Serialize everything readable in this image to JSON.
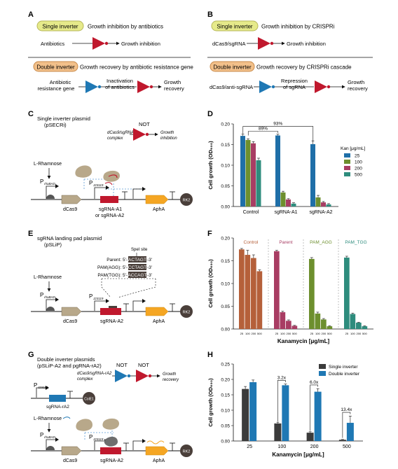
{
  "panels": {
    "A": {
      "label": "A",
      "single_tag": "Single inverter",
      "single_title": "Growth inhibition by antibiotics",
      "single_in": "Antibiotics",
      "single_out": "Growth inhibition",
      "double_tag": "Double inverter",
      "double_title": "Growth recovery by antibiotic resistance gene",
      "double_in_1": "Antibiotic",
      "double_in_2": "resistance gene",
      "double_mid_1": "Inactivation",
      "double_mid_2": "of antibiotics",
      "double_out_1": "Growth",
      "double_out_2": "recovery"
    },
    "B": {
      "label": "B",
      "single_tag": "Single inverter",
      "single_title": "Growth inhibition by CRISPRi",
      "single_in": "dCas9/sgRNA",
      "single_out": "Growth inhibition",
      "double_tag": "Double inverter",
      "double_title": "Growth recovery by CRISPRi cascade",
      "double_in": "dCas9/anti-sgRNA",
      "double_mid_1": "Repression",
      "double_mid_2": "of sgRNA",
      "double_out_1": "Growth",
      "double_out_2": "recovery"
    },
    "C": {
      "label": "C",
      "title_1": "Single inverter plasmid",
      "title_2": "(pSECRi)",
      "not_label": "NOT",
      "logic_in_1": "dCas9/sgRNA",
      "logic_in_2": "complex",
      "logic_out_1": "Growth",
      "logic_out_2": "inhibition",
      "inducer": "L-Rhamnose",
      "promoter_1": "P",
      "promoter_1_sub": "rhaBAD",
      "promoter_2": "P",
      "promoter_2_sub": "J23119",
      "gene_1": "dCas9",
      "gene_2_1": "sgRNA-A1",
      "gene_2_2": "or sgRNA-A2",
      "gene_3": "AphA",
      "origin": "RK2"
    },
    "E": {
      "label": "E",
      "title_1": "sgRNA landing pad plasmid",
      "title_2": "(pSLiP)",
      "site_label": "SpeI site",
      "seq_rows": [
        {
          "name": "Parent: 5'-",
          "seq": "ACTAGT",
          "end": "-3'"
        },
        {
          "name": "PAM(AGG): 5'-",
          "seq": "CCTAGT",
          "end": "-3'"
        },
        {
          "name": "PAM(TGG): 5'-",
          "seq": "ACCAGT",
          "end": "-3'"
        }
      ],
      "inducer": "L-Rhamnose",
      "promoter_1": "P",
      "promoter_1_sub": "rhaBAD",
      "promoter_2": "P",
      "promoter_2_sub": "J23119",
      "gene_1": "dCas9",
      "gene_2": "sgRNA-A2",
      "gene_3": "AphA",
      "origin": "RK2"
    },
    "G": {
      "label": "G",
      "title_1": "Double inverter plasmids",
      "title_2": "(pSLiP-A2 and pgRNA-rA2)",
      "not_1": "NOT",
      "not_2": "NOT",
      "logic_in_1": "dCas9/sgRNA-rA2",
      "logic_in_2": "complex",
      "logic_out_1": "Growth",
      "logic_out_2": "recovery",
      "promoter_a": "P",
      "promoter_a_sub": "J23119",
      "gene_ra2": "sgRNA-rA2",
      "origin_a": "ColE1",
      "inducer": "L-Rhamnose",
      "promoter_1": "P",
      "promoter_1_sub": "rhaBAD",
      "promoter_2": "P",
      "promoter_2_sub": "J23119",
      "gene_1": "dCas9",
      "gene_2": "sgRNA-A2",
      "gene_3": "AphA",
      "origin": "RK2"
    }
  },
  "chart_data": [
    {
      "panel": "D",
      "type": "bar",
      "ylabel": "Cell growth (OD₆₀₀)",
      "ylim": [
        0,
        0.2
      ],
      "yticks": [
        "0.00",
        "0.05",
        "0.10",
        "0.15",
        "0.20"
      ],
      "categories": [
        "Control",
        "sgRNA-A1",
        "sgRNA-A2"
      ],
      "legend_title": "Kan [μg/mL]",
      "legend_position": "right",
      "series": [
        {
          "name": "25",
          "color": "#1f6fa8",
          "values": [
            0.171,
            0.172,
            0.151
          ],
          "err": [
            0.004,
            0.003,
            0.008
          ]
        },
        {
          "name": "100",
          "color": "#6d8f2e",
          "values": [
            0.161,
            0.034,
            0.022
          ],
          "err": [
            0.003,
            0.003,
            0.005
          ]
        },
        {
          "name": "200",
          "color": "#a83d63",
          "values": [
            0.153,
            0.017,
            0.01
          ],
          "err": [
            0.004,
            0.002,
            0.002
          ]
        },
        {
          "name": "500",
          "color": "#2e8c7d",
          "values": [
            0.112,
            0.007,
            0.005
          ],
          "err": [
            0.005,
            0.002,
            0.002
          ]
        }
      ],
      "annotations": [
        "93%",
        "89%"
      ]
    },
    {
      "panel": "F",
      "type": "bar",
      "ylabel": "Cell growth (OD₆₀₀)",
      "xlabel": "Kanamycin [μg/mL]",
      "ylim": [
        0,
        0.2
      ],
      "yticks": [
        "0.00",
        "0.05",
        "0.10",
        "0.15",
        "0.20"
      ],
      "tick_labels": [
        "25",
        "100",
        "200",
        "500"
      ],
      "groups": [
        {
          "name": "Control",
          "color": "#b5603a",
          "values": [
            0.175,
            0.163,
            0.156,
            0.127
          ],
          "err": [
            0.002,
            0.01,
            0.007,
            0.003
          ]
        },
        {
          "name": "Parent",
          "color": "#a83d63",
          "values": [
            0.171,
            0.037,
            0.018,
            0.007
          ],
          "err": [
            0.002,
            0.002,
            0.002,
            0.001
          ]
        },
        {
          "name": "PAM_AGG",
          "color": "#6d8f2e",
          "values": [
            0.154,
            0.034,
            0.021,
            0.006
          ],
          "err": [
            0.003,
            0.003,
            0.002,
            0.001
          ]
        },
        {
          "name": "PAM_TGG",
          "color": "#2e8c7d",
          "values": [
            0.157,
            0.033,
            0.014,
            0.006
          ],
          "err": [
            0.003,
            0.002,
            0.001,
            0.001
          ]
        }
      ]
    },
    {
      "panel": "H",
      "type": "bar",
      "ylabel": "Cell growth (OD₆₀₀)",
      "xlabel": "Kanamycin [μg/mL]",
      "ylim": [
        0,
        0.25
      ],
      "yticks": [
        "0.00",
        "0.05",
        "0.10",
        "0.15",
        "0.20",
        "0.25"
      ],
      "categories": [
        "25",
        "100",
        "200",
        "500"
      ],
      "legend_position": "top-right",
      "series": [
        {
          "name": "Single inverter",
          "color": "#3b3b3b",
          "values": [
            0.169,
            0.057,
            0.027,
            0.004
          ],
          "err": [
            0.008,
            0.004,
            0.003,
            0.001
          ]
        },
        {
          "name": "Double inverter",
          "color": "#1f78b4",
          "values": [
            0.191,
            0.181,
            0.16,
            0.059
          ],
          "err": [
            0.007,
            0.004,
            0.01,
            0.022
          ]
        }
      ],
      "annotations": [
        "3.2x",
        "6.0x",
        "13.4x"
      ]
    }
  ]
}
